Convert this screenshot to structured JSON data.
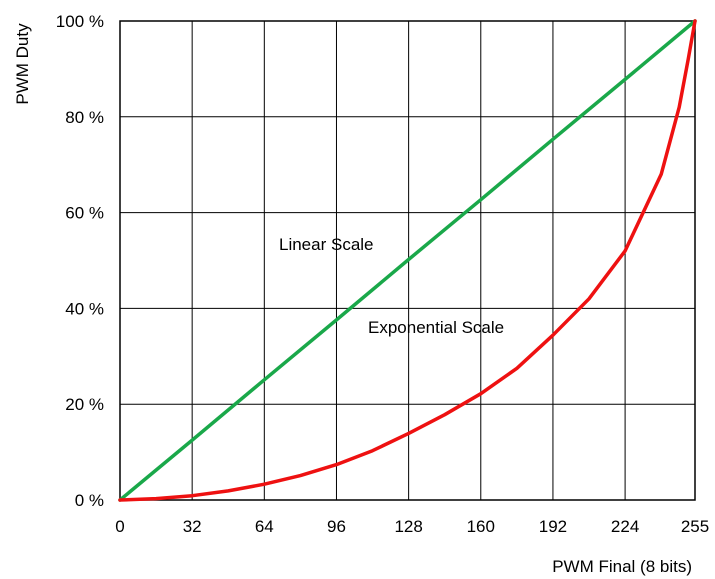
{
  "chart_data": {
    "type": "line",
    "title": "",
    "xlabel": "PWM  Final (8 bits)",
    "ylabel": "PWM Duty",
    "xlim": [
      0,
      255
    ],
    "ylim": [
      0,
      100
    ],
    "grid": true,
    "x_ticks": [
      0,
      32,
      64,
      96,
      128,
      160,
      192,
      224,
      255
    ],
    "x_tick_labels": [
      "0",
      "32",
      "64",
      "96",
      "128",
      "160",
      "192",
      "224",
      "255"
    ],
    "y_ticks": [
      0,
      20,
      40,
      60,
      80,
      100
    ],
    "y_tick_labels": [
      "0 %",
      "20 %",
      "40 %",
      "60 %",
      "80 %",
      "100 %"
    ],
    "series": [
      {
        "name": "Linear Scale",
        "color": "#1aa84a",
        "x": [
          0,
          32,
          64,
          96,
          128,
          160,
          192,
          224,
          255
        ],
        "y": [
          0,
          12.5,
          25.1,
          37.6,
          50.2,
          62.7,
          75.3,
          87.8,
          100
        ]
      },
      {
        "name": "Exponential Scale",
        "color": "#ee1111",
        "x": [
          0,
          16,
          32,
          48,
          64,
          80,
          96,
          112,
          128,
          144,
          160,
          176,
          192,
          208,
          224,
          240,
          248,
          252,
          255
        ],
        "y": [
          0,
          0.3,
          0.9,
          1.9,
          3.3,
          5.1,
          7.4,
          10.3,
          13.9,
          17.8,
          22.2,
          27.5,
          34.4,
          42.0,
          52.0,
          68.0,
          82.0,
          92.0,
          100
        ]
      }
    ]
  }
}
